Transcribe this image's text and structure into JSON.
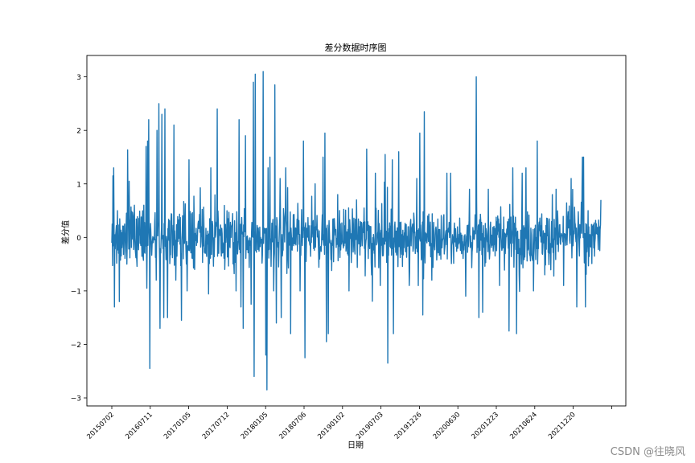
{
  "watermark": "CSDN @往晓风",
  "chart_data": {
    "type": "line",
    "title": "差分数据时序图",
    "xlabel": "日期",
    "ylabel": "差分值",
    "ylim": [
      -3.15,
      3.4
    ],
    "yticks": [
      -3,
      -2,
      -1,
      0,
      1,
      2,
      3
    ],
    "xticks": [
      "20150702",
      "20160711",
      "20170105",
      "20170712",
      "20180105",
      "20180706",
      "20190102",
      "20190703",
      "20191226",
      "20200630",
      "20201223",
      "20210624",
      "20211220",
      ""
    ],
    "grid": false,
    "line_color": "#1f77b4",
    "n_points": 1300,
    "series": [
      {
        "name": "",
        "key_points": [
          [
            0,
            -0.1
          ],
          [
            3,
            1.15
          ],
          [
            5,
            1.3
          ],
          [
            7,
            -1.3
          ],
          [
            15,
            0.5
          ],
          [
            20,
            -1.2
          ],
          [
            40,
            -0.5
          ],
          [
            60,
            0.6
          ],
          [
            85,
            0.6
          ],
          [
            91,
            1.7
          ],
          [
            93,
            -0.95
          ],
          [
            95,
            1.8
          ],
          [
            98,
            2.2
          ],
          [
            101,
            -2.45
          ],
          [
            110,
            -0.1
          ],
          [
            118,
            -0.8
          ],
          [
            120,
            2.0
          ],
          [
            125,
            2.5
          ],
          [
            128,
            -1.7
          ],
          [
            133,
            2.3
          ],
          [
            138,
            -1.5
          ],
          [
            141,
            2.4
          ],
          [
            148,
            -1.5
          ],
          [
            165,
            2.1
          ],
          [
            170,
            -0.8
          ],
          [
            185,
            -1.55
          ],
          [
            200,
            -1.0
          ],
          [
            205,
            1.45
          ],
          [
            220,
            -0.6
          ],
          [
            260,
            0.35
          ],
          [
            263,
            1.3
          ],
          [
            280,
            2.4
          ],
          [
            300,
            -0.6
          ],
          [
            330,
            -1.0
          ],
          [
            338,
            2.2
          ],
          [
            343,
            -1.3
          ],
          [
            349,
            -1.7
          ],
          [
            355,
            1.9
          ],
          [
            370,
            -1.25
          ],
          [
            376,
            2.9
          ],
          [
            378,
            -2.6
          ],
          [
            381,
            3.05
          ],
          [
            395,
            0.0
          ],
          [
            402,
            3.1
          ],
          [
            409,
            -2.2
          ],
          [
            412,
            -2.85
          ],
          [
            415,
            1.3
          ],
          [
            420,
            1.5
          ],
          [
            430,
            -1.0
          ],
          [
            433,
            2.85
          ],
          [
            437,
            -1.6
          ],
          [
            447,
            1.1
          ],
          [
            450,
            -1.5
          ],
          [
            462,
            1.3
          ],
          [
            475,
            -1.8
          ],
          [
            500,
            -1.0
          ],
          [
            509,
            1.8
          ],
          [
            513,
            -2.25
          ],
          [
            540,
            1.0
          ],
          [
            561,
            1.5
          ],
          [
            566,
            1.95
          ],
          [
            570,
            -1.95
          ],
          [
            575,
            -1.8
          ],
          [
            600,
            0.8
          ],
          [
            630,
            -1.0
          ],
          [
            650,
            0.7
          ],
          [
            677,
            1.65
          ],
          [
            690,
            -0.7
          ],
          [
            700,
            1.2
          ],
          [
            713,
            -0.9
          ],
          [
            726,
            1.55
          ],
          [
            733,
            -2.35
          ],
          [
            745,
            1.45
          ],
          [
            748,
            -1.8
          ],
          [
            762,
            1.6
          ],
          [
            790,
            -0.9
          ],
          [
            810,
            1.1
          ],
          [
            818,
            1.95
          ],
          [
            826,
            -1.45
          ],
          [
            830,
            2.35
          ],
          [
            850,
            -0.8
          ],
          [
            890,
            1.2
          ],
          [
            900,
            1.2
          ],
          [
            940,
            -1.1
          ],
          [
            950,
            0.9
          ],
          [
            968,
            3.0
          ],
          [
            975,
            -1.5
          ],
          [
            985,
            -1.4
          ],
          [
            1000,
            0.9
          ],
          [
            1030,
            -0.9
          ],
          [
            1055,
            -1.75
          ],
          [
            1065,
            1.3
          ],
          [
            1075,
            -1.8
          ],
          [
            1090,
            1.2
          ],
          [
            1100,
            1.3
          ],
          [
            1120,
            -1.0
          ],
          [
            1130,
            1.8
          ],
          [
            1150,
            -0.7
          ],
          [
            1170,
            0.8
          ],
          [
            1180,
            0.9
          ],
          [
            1200,
            -0.9
          ],
          [
            1220,
            1.1
          ],
          [
            1235,
            -1.3
          ],
          [
            1250,
            1.5
          ],
          [
            1253,
            1.5
          ],
          [
            1258,
            -1.3
          ],
          [
            1265,
            0.5
          ],
          [
            1299,
            0.7
          ]
        ]
      }
    ]
  }
}
